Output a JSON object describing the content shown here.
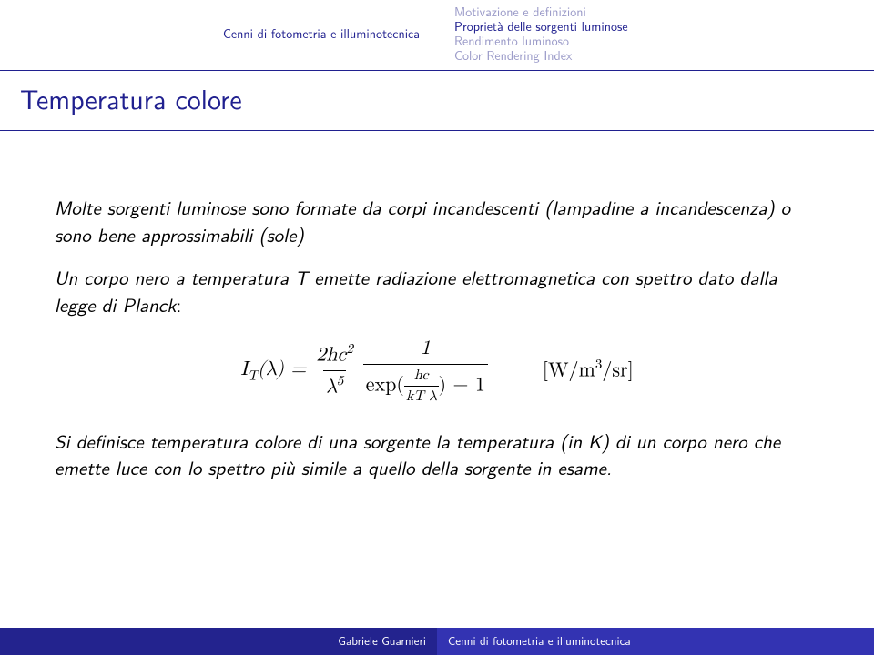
{
  "header": {
    "section": "Cenni di fotometria e illuminotecnica",
    "subsections": [
      {
        "label": "Motivazione e definizioni",
        "active": false
      },
      {
        "label": "Proprietà delle sorgenti luminose",
        "active": true
      },
      {
        "label": "Rendimento luminoso",
        "active": false
      },
      {
        "label": "Color Rendering Index",
        "active": false
      }
    ]
  },
  "title": "Temperatura colore",
  "content": {
    "para1_a": "Molte sorgenti luminose sono formate da corpi incandescenti (lampadine a incandescenza) o sono bene approssimabili (sole)",
    "para2_a": "Un corpo nero a temperatura ",
    "para2_T": "T",
    "para2_b": " emette radiazione elettromagnetica con spettro dato dalla ",
    "para2_c": "legge di Planck",
    "para2_d": ":",
    "para3_a": "Si definisce ",
    "para3_b": "temperatura colore",
    "para3_c": " di una sorgente la temperatura (in K) di un corpo nero che emette luce con lo spettro più simile a quello della sorgente in esame."
  },
  "equation": {
    "lhs_I": "I",
    "lhs_sub": "T",
    "lhs_arg": "(λ) =",
    "f1_num": "2hc",
    "f1_num_sup": "2",
    "f1_den_a": "λ",
    "f1_den_sup": "5",
    "f2_num": "1",
    "f2_den_a": "exp(",
    "f2_tiny_num": "hc",
    "f2_tiny_den": "kT λ",
    "f2_den_b": ") − 1",
    "unit": "[W/m",
    "unit_sup": "3",
    "unit_b": "/sr]"
  },
  "footer": {
    "author": "Gabriele Guarnieri",
    "talk": "Cenni di fotometria e illuminotecnica"
  },
  "colors": {
    "accent": "#20208f",
    "dim": "#9a9ac8",
    "footer_left": "#23238e",
    "footer_right": "#3333b2"
  }
}
